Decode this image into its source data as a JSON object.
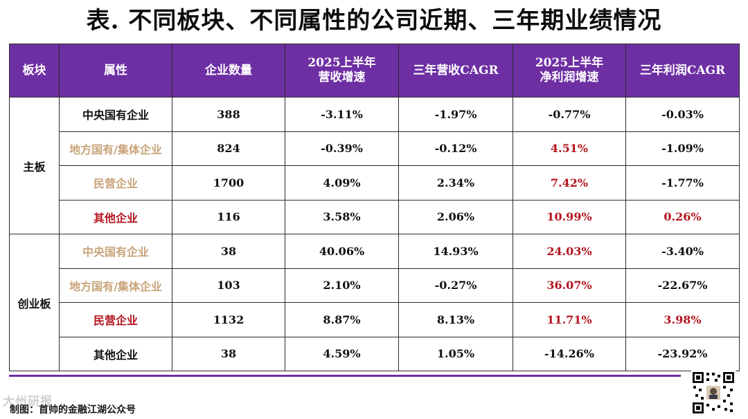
{
  "title": "表. 不同板块、不同属性的公司近期、三年期业绩情况",
  "table": {
    "headers": {
      "board": "板块",
      "attr": "属性",
      "count": "企业数量",
      "rev_h1_line1": "2025上半年",
      "rev_h1_line2": "营收增速",
      "rev_cagr": "三年营收CAGR",
      "np_h1_line1": "2025上半年",
      "np_h1_line2": "净利润增速",
      "np_cagr": "三年利润CAGR"
    },
    "boards": [
      {
        "name": "主板",
        "rows": [
          {
            "attr": "中央国有企业",
            "count": "388",
            "rev": "-3.11%",
            "rev_cagr": "-1.97%",
            "np": "-0.77%",
            "np_cagr": "-0.03%"
          },
          {
            "attr": "地方国有/集体企业",
            "count": "824",
            "rev": "-0.39%",
            "rev_cagr": "-0.12%",
            "np": "4.51%",
            "np_cagr": "-1.09%"
          },
          {
            "attr": "民营企业",
            "count": "1700",
            "rev": "4.09%",
            "rev_cagr": "2.34%",
            "np": "7.42%",
            "np_cagr": "-1.77%"
          },
          {
            "attr": "其他企业",
            "count": "116",
            "rev": "3.58%",
            "rev_cagr": "2.06%",
            "np": "10.99%",
            "np_cagr": "0.26%"
          }
        ]
      },
      {
        "name": "创业板",
        "rows": [
          {
            "attr": "中央国有企业",
            "count": "38",
            "rev": "40.06%",
            "rev_cagr": "14.93%",
            "np": "24.03%",
            "np_cagr": "-3.40%"
          },
          {
            "attr": "地方国有/集体企业",
            "count": "103",
            "rev": "2.10%",
            "rev_cagr": "-0.27%",
            "np": "36.07%",
            "np_cagr": "-22.67%"
          },
          {
            "attr": "民营企业",
            "count": "1132",
            "rev": "8.87%",
            "rev_cagr": "8.13%",
            "np": "11.71%",
            "np_cagr": "3.98%"
          },
          {
            "attr": "其他企业",
            "count": "38",
            "rev": "4.59%",
            "rev_cagr": "1.05%",
            "np": "-14.26%",
            "np_cagr": "-23.92%"
          }
        ]
      }
    ]
  },
  "colors": {
    "header_bg": "#6e2fa3",
    "highlight_red": "#b3141e",
    "label_tan": "#c9a47a"
  },
  "footer": {
    "credit": "制图：首帅的金融江湖公众号",
    "watermark": "大州研报"
  }
}
